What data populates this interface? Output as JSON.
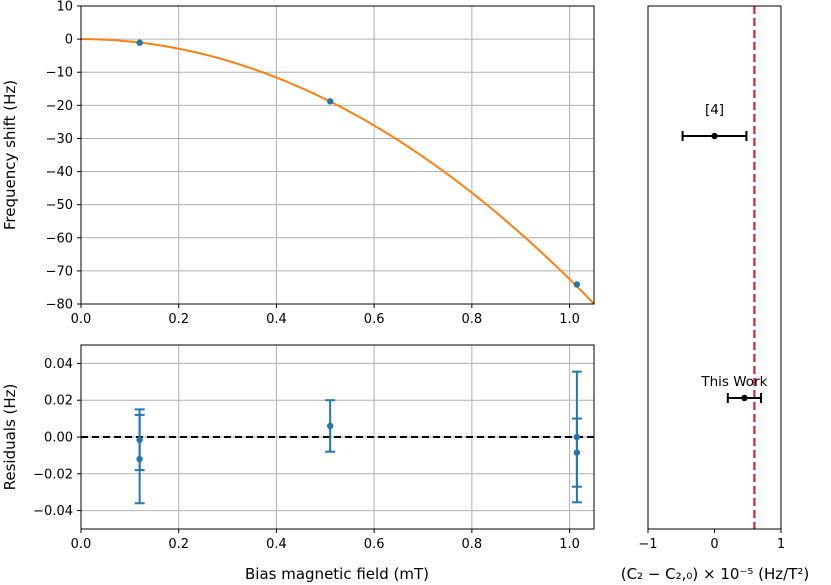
{
  "colors": {
    "fit_line": "#ff7f0e",
    "points": "#1f77b4",
    "reference_line": "#d62728",
    "zero_line": "#000000",
    "grid": "#b0b0b0",
    "comparison_points": "#000000"
  },
  "chart_data": [
    {
      "id": "frequency-shift",
      "type": "scatter",
      "xlabel": "",
      "ylabel": "Frequency shift (Hz)",
      "xlim": [
        0.0,
        1.05
      ],
      "ylim": [
        -80,
        10
      ],
      "xticks": [
        0.0,
        0.2,
        0.4,
        0.6,
        0.8,
        1.0
      ],
      "xtick_labels": [
        "0.0",
        "0.2",
        "0.4",
        "0.6",
        "0.8",
        "1.0"
      ],
      "yticks": [
        10,
        0,
        -10,
        -20,
        -30,
        -40,
        -50,
        -60,
        -70,
        -80
      ],
      "ytick_labels": [
        "10",
        "0",
        "−10",
        "−20",
        "−30",
        "−40",
        "−50",
        "−60",
        "−70",
        "−80"
      ],
      "grid": true,
      "fit": {
        "form": "quadratic",
        "coefficient": -72.5
      },
      "points": [
        {
          "x": 0.12,
          "y": -1.1
        },
        {
          "x": 0.51,
          "y": -18.8
        },
        {
          "x": 1.015,
          "y": -74.1
        }
      ]
    },
    {
      "id": "residuals",
      "type": "scatter",
      "xlabel": "Bias magnetic field (mT)",
      "ylabel": "Residuals (Hz)",
      "xlim": [
        0.0,
        1.05
      ],
      "ylim": [
        -0.05,
        0.05
      ],
      "xticks": [
        0.0,
        0.2,
        0.4,
        0.6,
        0.8,
        1.0
      ],
      "xtick_labels": [
        "0.0",
        "0.2",
        "0.4",
        "0.6",
        "0.8",
        "1.0"
      ],
      "yticks": [
        0.04,
        0.02,
        0.0,
        -0.02,
        -0.04
      ],
      "ytick_labels": [
        "0.04",
        "0.02",
        "0.00",
        "−0.02",
        "−0.04"
      ],
      "grid": true,
      "reference_y": 0,
      "points": [
        {
          "x": 0.12,
          "y": -0.0015,
          "err": 0.0165
        },
        {
          "x": 0.12,
          "y": -0.012,
          "err": 0.024
        },
        {
          "x": 0.51,
          "y": 0.006,
          "err": 0.014
        },
        {
          "x": 1.015,
          "y": 0.0,
          "err": 0.0355
        },
        {
          "x": 1.015,
          "y": -0.0085,
          "err": 0.0185
        }
      ]
    },
    {
      "id": "c2-comparison",
      "type": "scatter",
      "xlabel": "(C₂ − C₂,₀) × 10⁻⁵ (Hz/T²)",
      "xlim": [
        -1,
        1
      ],
      "xticks": [
        -1,
        0,
        1
      ],
      "xtick_labels": [
        "−1",
        "0",
        "1"
      ],
      "grid": false,
      "reference_x": 0.6,
      "points": [
        {
          "label": "[4]",
          "x": 0.0,
          "xerr": 0.48
        },
        {
          "label": "This Work",
          "x": 0.45,
          "xerr": 0.25
        }
      ]
    }
  ]
}
